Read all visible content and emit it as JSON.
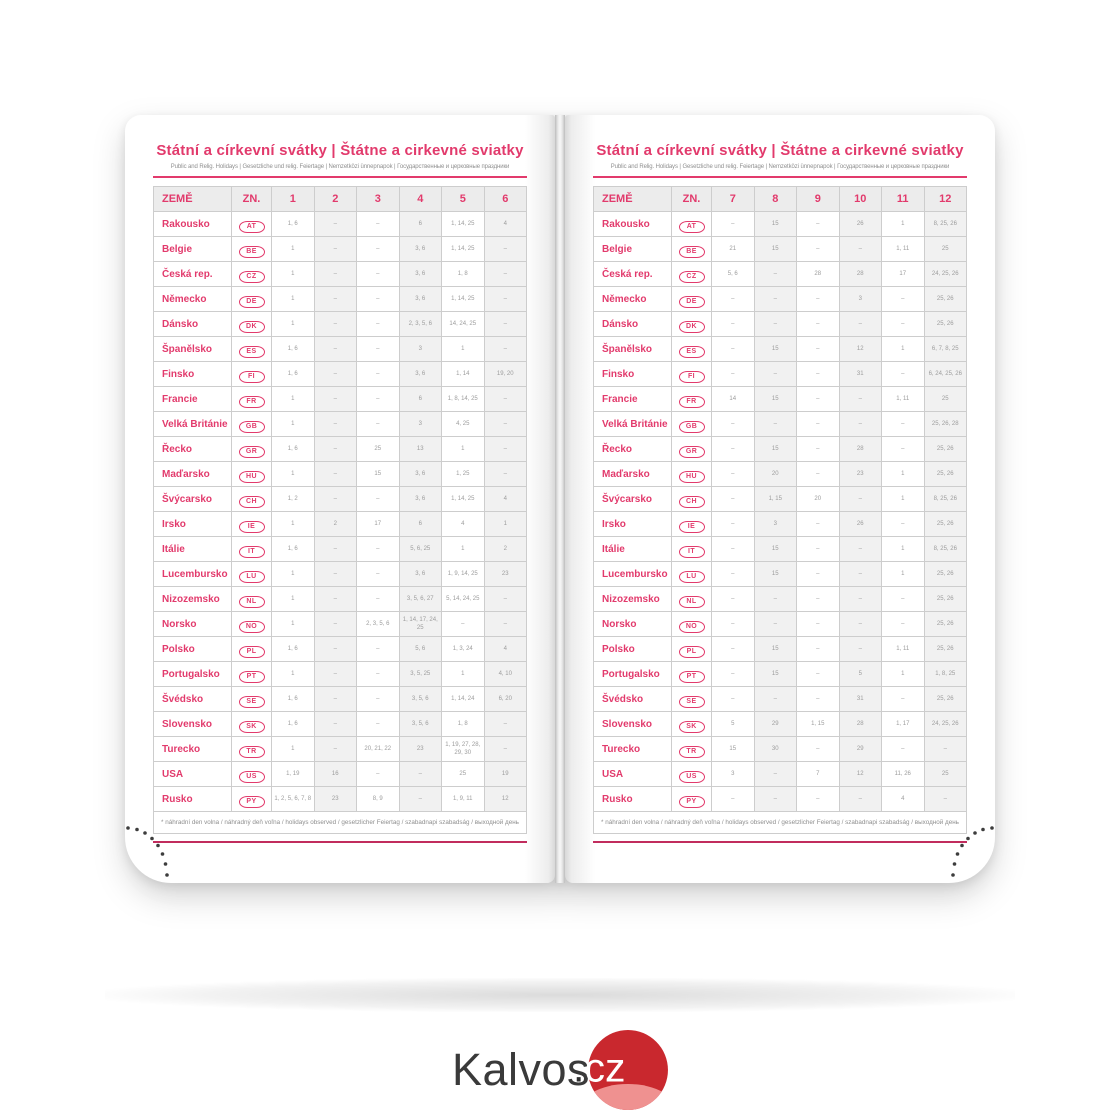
{
  "header": {
    "title": "Státní a církevní svátky | Štátne a cirkevné sviatky",
    "subtitle": "Public and Relig. Holidays | Gesetzliche und relig. Feiertage | Nemzetközi ünnepnapok | Государственные и церковные праздники"
  },
  "table": {
    "col_country": "ZEMĚ",
    "col_code": "ZN.",
    "left_months": [
      "1",
      "2",
      "3",
      "4",
      "5",
      "6"
    ],
    "right_months": [
      "7",
      "8",
      "9",
      "10",
      "11",
      "12"
    ],
    "footnote": "* náhradní den volna / náhradný deň voľna / holidays observed / gesetzlicher Feiertag / szabadnapi szabadság / выходной день",
    "countries": [
      {
        "name": "Rakousko",
        "code": "AT",
        "left": [
          "1, 6",
          "–",
          "–",
          "6",
          "1, 14, 25",
          "4"
        ],
        "right": [
          "–",
          "15",
          "–",
          "26",
          "1",
          "8, 25, 26"
        ]
      },
      {
        "name": "Belgie",
        "code": "BE",
        "left": [
          "1",
          "–",
          "–",
          "3, 6",
          "1, 14, 25",
          "–"
        ],
        "right": [
          "21",
          "15",
          "–",
          "–",
          "1, 11",
          "25"
        ]
      },
      {
        "name": "Česká rep.",
        "code": "CZ",
        "left": [
          "1",
          "–",
          "–",
          "3, 6",
          "1, 8",
          "–"
        ],
        "right": [
          "5, 6",
          "–",
          "28",
          "28",
          "17",
          "24, 25, 26"
        ]
      },
      {
        "name": "Německo",
        "code": "DE",
        "left": [
          "1",
          "–",
          "–",
          "3, 6",
          "1, 14, 25",
          "–"
        ],
        "right": [
          "–",
          "–",
          "–",
          "3",
          "–",
          "25, 26"
        ]
      },
      {
        "name": "Dánsko",
        "code": "DK",
        "left": [
          "1",
          "–",
          "–",
          "2, 3, 5, 6",
          "14, 24, 25",
          "–"
        ],
        "right": [
          "–",
          "–",
          "–",
          "–",
          "–",
          "25, 26"
        ]
      },
      {
        "name": "Španělsko",
        "code": "ES",
        "left": [
          "1, 6",
          "–",
          "–",
          "3",
          "1",
          "–"
        ],
        "right": [
          "–",
          "15",
          "–",
          "12",
          "1",
          "6, 7, 8, 25"
        ]
      },
      {
        "name": "Finsko",
        "code": "FI",
        "left": [
          "1, 6",
          "–",
          "–",
          "3, 6",
          "1, 14",
          "19, 20"
        ],
        "right": [
          "–",
          "–",
          "–",
          "31",
          "–",
          "6, 24, 25, 26"
        ]
      },
      {
        "name": "Francie",
        "code": "FR",
        "left": [
          "1",
          "–",
          "–",
          "6",
          "1, 8, 14, 25",
          "–"
        ],
        "right": [
          "14",
          "15",
          "–",
          "–",
          "1, 11",
          "25"
        ]
      },
      {
        "name": "Velká Británie",
        "code": "GB",
        "left": [
          "1",
          "–",
          "–",
          "3",
          "4, 25",
          "–"
        ],
        "right": [
          "–",
          "–",
          "–",
          "–",
          "–",
          "25, 26, 28"
        ]
      },
      {
        "name": "Řecko",
        "code": "GR",
        "left": [
          "1, 6",
          "–",
          "25",
          "13",
          "1",
          "–"
        ],
        "right": [
          "–",
          "15",
          "–",
          "28",
          "–",
          "25, 26"
        ]
      },
      {
        "name": "Maďarsko",
        "code": "HU",
        "left": [
          "1",
          "–",
          "15",
          "3, 6",
          "1, 25",
          "–"
        ],
        "right": [
          "–",
          "20",
          "–",
          "23",
          "1",
          "25, 26"
        ]
      },
      {
        "name": "Švýcarsko",
        "code": "CH",
        "left": [
          "1, 2",
          "–",
          "–",
          "3, 6",
          "1, 14, 25",
          "4"
        ],
        "right": [
          "–",
          "1, 15",
          "20",
          "–",
          "1",
          "8, 25, 26"
        ]
      },
      {
        "name": "Irsko",
        "code": "IE",
        "left": [
          "1",
          "2",
          "17",
          "6",
          "4",
          "1"
        ],
        "right": [
          "–",
          "3",
          "–",
          "26",
          "–",
          "25, 26"
        ]
      },
      {
        "name": "Itálie",
        "code": "IT",
        "left": [
          "1, 6",
          "–",
          "–",
          "5, 6, 25",
          "1",
          "2"
        ],
        "right": [
          "–",
          "15",
          "–",
          "–",
          "1",
          "8, 25, 26"
        ]
      },
      {
        "name": "Lucembursko",
        "code": "LU",
        "left": [
          "1",
          "–",
          "–",
          "3, 6",
          "1, 9, 14, 25",
          "23"
        ],
        "right": [
          "–",
          "15",
          "–",
          "–",
          "1",
          "25, 26"
        ]
      },
      {
        "name": "Nizozemsko",
        "code": "NL",
        "left": [
          "1",
          "–",
          "–",
          "3, 5, 6, 27",
          "5, 14, 24, 25",
          "–"
        ],
        "right": [
          "–",
          "–",
          "–",
          "–",
          "–",
          "25, 26"
        ]
      },
      {
        "name": "Norsko",
        "code": "NO",
        "left": [
          "1",
          "–",
          "2, 3, 5, 6",
          "1, 14, 17, 24, 25",
          "–",
          "–"
        ],
        "right": [
          "–",
          "–",
          "–",
          "–",
          "–",
          "25, 26"
        ]
      },
      {
        "name": "Polsko",
        "code": "PL",
        "left": [
          "1, 6",
          "–",
          "–",
          "5, 6",
          "1, 3, 24",
          "4"
        ],
        "right": [
          "–",
          "15",
          "–",
          "–",
          "1, 11",
          "25, 26"
        ]
      },
      {
        "name": "Portugalsko",
        "code": "PT",
        "left": [
          "1",
          "–",
          "–",
          "3, 5, 25",
          "1",
          "4, 10"
        ],
        "right": [
          "–",
          "15",
          "–",
          "5",
          "1",
          "1, 8, 25"
        ]
      },
      {
        "name": "Švédsko",
        "code": "SE",
        "left": [
          "1, 6",
          "–",
          "–",
          "3, 5, 6",
          "1, 14, 24",
          "6, 20"
        ],
        "right": [
          "–",
          "–",
          "–",
          "31",
          "–",
          "25, 26"
        ]
      },
      {
        "name": "Slovensko",
        "code": "SK",
        "left": [
          "1, 6",
          "–",
          "–",
          "3, 5, 6",
          "1, 8",
          "–"
        ],
        "right": [
          "5",
          "29",
          "1, 15",
          "28",
          "1, 17",
          "24, 25, 26"
        ]
      },
      {
        "name": "Turecko",
        "code": "TR",
        "left": [
          "1",
          "–",
          "20, 21, 22",
          "23",
          "1, 19, 27, 28, 29, 30",
          "–"
        ],
        "right": [
          "15",
          "30",
          "–",
          "29",
          "–",
          "–"
        ]
      },
      {
        "name": "USA",
        "code": "US",
        "left": [
          "1, 19",
          "16",
          "–",
          "–",
          "25",
          "19"
        ],
        "right": [
          "3",
          "–",
          "7",
          "12",
          "11, 26",
          "25"
        ]
      },
      {
        "name": "Rusko",
        "code": "PY",
        "left": [
          "1, 2, 5, 6, 7, 8",
          "23",
          "8, 9",
          "–",
          "1, 9, 11",
          "12"
        ],
        "right": [
          "–",
          "–",
          "–",
          "–",
          "4",
          "–"
        ]
      }
    ]
  },
  "logo": {
    "name": "Kalvos",
    "dot": ".",
    "tld": "cz"
  },
  "colors": {
    "accent_pink": "#e23a6c",
    "rule_bottom": "#c12c5d",
    "logo_red": "#c9282e",
    "logo_crescent": "#ef9190",
    "cell_text_gray": "#9c9c9c"
  }
}
